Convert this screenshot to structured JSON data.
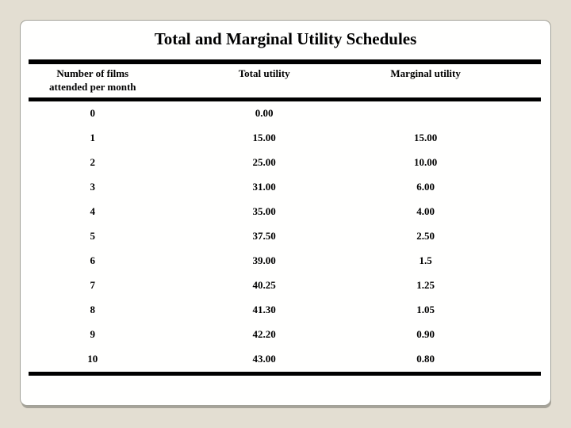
{
  "slide": {
    "title": "Total and Marginal Utility Schedules"
  },
  "table": {
    "headers": {
      "films_line1": "Number of films",
      "films_line2": "attended per month",
      "total": "Total utility",
      "marginal": "Marginal utility"
    },
    "rows": [
      {
        "films": "0",
        "total": "0.00",
        "marginal": ""
      },
      {
        "films": "1",
        "total": "15.00",
        "marginal": "15.00"
      },
      {
        "films": "2",
        "total": "25.00",
        "marginal": "10.00"
      },
      {
        "films": "3",
        "total": "31.00",
        "marginal": "6.00"
      },
      {
        "films": "4",
        "total": "35.00",
        "marginal": "4.00"
      },
      {
        "films": "5",
        "total": "37.50",
        "marginal": "2.50"
      },
      {
        "films": "6",
        "total": "39.00",
        "marginal": "1.5"
      },
      {
        "films": "7",
        "total": "40.25",
        "marginal": "1.25"
      },
      {
        "films": "8",
        "total": "41.30",
        "marginal": "1.05"
      },
      {
        "films": "9",
        "total": "42.20",
        "marginal": "0.90"
      },
      {
        "films": "10",
        "total": "43.00",
        "marginal": "0.80"
      }
    ]
  },
  "colors": {
    "background": "#e3ded2",
    "card": "#fffffe",
    "card_border": "#a2a198",
    "card_shadow": "#a6a399",
    "rule": "#000000",
    "text": "#000000"
  },
  "chart_data": {
    "type": "table",
    "title": "Total and Marginal Utility Schedules",
    "columns": [
      "Number of films attended per month",
      "Total utility",
      "Marginal utility"
    ],
    "rows": [
      [
        0,
        0.0,
        null
      ],
      [
        1,
        15.0,
        15.0
      ],
      [
        2,
        25.0,
        10.0
      ],
      [
        3,
        31.0,
        6.0
      ],
      [
        4,
        35.0,
        4.0
      ],
      [
        5,
        37.5,
        2.5
      ],
      [
        6,
        39.0,
        1.5
      ],
      [
        7,
        40.25,
        1.25
      ],
      [
        8,
        41.3,
        1.05
      ],
      [
        9,
        42.2,
        0.9
      ],
      [
        10,
        43.0,
        0.8
      ]
    ]
  }
}
